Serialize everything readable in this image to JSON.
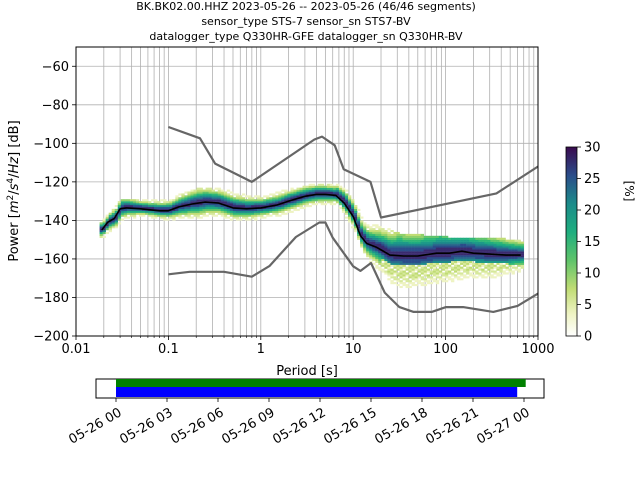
{
  "title_lines": [
    "BK.BK02.00.HHZ   2023-05-26 -- 2023-05-26  (46/46 segments)",
    "sensor_type STS-7 sensor_sn STS7-BV",
    "datalogger_type Q330HR-GFE datalogger_sn Q330HR-BV"
  ],
  "chart_data": {
    "type": "heatmap",
    "xlabel": "Period [s]",
    "ylabel": "Power [m²/s⁴/Hz] [dB]",
    "xscale": "log",
    "xlim": [
      0.01,
      1000
    ],
    "ylim": [
      -200,
      -50
    ],
    "xticks": [
      {
        "value": 0.01,
        "label": "0.01"
      },
      {
        "value": 0.1,
        "label": "0.1"
      },
      {
        "value": 1,
        "label": "1"
      },
      {
        "value": 10,
        "label": "10"
      },
      {
        "value": 100,
        "label": "100"
      },
      {
        "value": 1000,
        "label": "1000"
      }
    ],
    "yticks": [
      -60,
      -80,
      -100,
      -120,
      -140,
      -160,
      -180,
      -200
    ],
    "grid": true,
    "series": [
      {
        "role": "high-noise-model",
        "color": "#666666",
        "points": [
          [
            0.1,
            -91.5
          ],
          [
            0.22,
            -97.4
          ],
          [
            0.32,
            -110.5
          ],
          [
            0.8,
            -120
          ],
          [
            3.8,
            -98
          ],
          [
            4.6,
            -96.5
          ],
          [
            6.3,
            -101
          ],
          [
            7.9,
            -113.5
          ],
          [
            15.4,
            -120
          ],
          [
            20,
            -138.5
          ],
          [
            354.8,
            -126
          ],
          [
            1000,
            -112
          ]
        ]
      },
      {
        "role": "low-noise-model",
        "color": "#666666",
        "points": [
          [
            0.1,
            -168
          ],
          [
            0.17,
            -166.7
          ],
          [
            0.4,
            -166.7
          ],
          [
            0.8,
            -169.2
          ],
          [
            1.24,
            -163.7
          ],
          [
            2.4,
            -148.6
          ],
          [
            4.3,
            -141.1
          ],
          [
            5,
            -141.1
          ],
          [
            6,
            -149
          ],
          [
            10,
            -163.8
          ],
          [
            12,
            -166.2
          ],
          [
            15.6,
            -162.1
          ],
          [
            21.9,
            -177.5
          ],
          [
            31.6,
            -185
          ],
          [
            45,
            -187.5
          ],
          [
            70.8,
            -187.5
          ],
          [
            101,
            -185
          ],
          [
            154.5,
            -185
          ],
          [
            328.4,
            -187.5
          ],
          [
            600,
            -184.4
          ],
          [
            1000,
            -178
          ]
        ]
      },
      {
        "role": "mode",
        "color": "#000000",
        "points": [
          [
            0.019,
            -145
          ],
          [
            0.022,
            -141
          ],
          [
            0.026,
            -139
          ],
          [
            0.03,
            -134
          ],
          [
            0.035,
            -133.5
          ],
          [
            0.05,
            -134
          ],
          [
            0.08,
            -135
          ],
          [
            0.1,
            -135
          ],
          [
            0.13,
            -133
          ],
          [
            0.18,
            -131.5
          ],
          [
            0.25,
            -130.5
          ],
          [
            0.35,
            -131
          ],
          [
            0.5,
            -133.5
          ],
          [
            0.7,
            -134
          ],
          [
            1,
            -133.5
          ],
          [
            1.5,
            -132
          ],
          [
            2,
            -130
          ],
          [
            3,
            -127.5
          ],
          [
            4,
            -126.5
          ],
          [
            5,
            -126.5
          ],
          [
            6.5,
            -127
          ],
          [
            8,
            -131
          ],
          [
            10,
            -138
          ],
          [
            12,
            -148
          ],
          [
            14,
            -152
          ],
          [
            18,
            -154
          ],
          [
            25,
            -158
          ],
          [
            35,
            -158.5
          ],
          [
            50,
            -158.5
          ],
          [
            80,
            -157
          ],
          [
            110,
            -157
          ],
          [
            150,
            -156
          ],
          [
            200,
            -157
          ],
          [
            300,
            -157.5
          ],
          [
            450,
            -158
          ],
          [
            650,
            -158
          ]
        ]
      }
    ],
    "heatmap_envelope": [
      {
        "period": 0.02,
        "low": -150,
        "high": -140
      },
      {
        "period": 0.03,
        "low": -144,
        "high": -130
      },
      {
        "period": 0.05,
        "low": -140,
        "high": -131
      },
      {
        "period": 0.1,
        "low": -141,
        "high": -130
      },
      {
        "period": 0.2,
        "low": -142,
        "high": -124
      },
      {
        "period": 0.3,
        "low": -140,
        "high": -124
      },
      {
        "period": 0.5,
        "low": -141,
        "high": -126
      },
      {
        "period": 1,
        "low": -140,
        "high": -128
      },
      {
        "period": 2,
        "low": -138,
        "high": -125
      },
      {
        "period": 4,
        "low": -134,
        "high": -122
      },
      {
        "period": 6,
        "low": -133,
        "high": -122
      },
      {
        "period": 8,
        "low": -140,
        "high": -125
      },
      {
        "period": 10,
        "low": -148,
        "high": -132
      },
      {
        "period": 15,
        "low": -162,
        "high": -142
      },
      {
        "period": 30,
        "low": -182,
        "high": -148
      },
      {
        "period": 100,
        "low": -182,
        "high": -150
      },
      {
        "period": 300,
        "low": -176,
        "high": -150
      },
      {
        "period": 650,
        "low": -170,
        "high": -152
      }
    ],
    "colorbar": {
      "label": "[%]",
      "min": 0,
      "max": 30,
      "ticks": [
        0,
        5,
        10,
        15,
        20,
        25,
        30
      ]
    }
  },
  "timeline": {
    "tick_labels": [
      "05-26 00",
      "05-26 03",
      "05-26 06",
      "05-26 09",
      "05-26 12",
      "05-26 15",
      "05-26 18",
      "05-26 21",
      "05-27 00"
    ],
    "green_bar": {
      "start_hours": 0,
      "end_hours": 24.1,
      "color": "#008000"
    },
    "blue_bar": {
      "start_hours": 0,
      "end_hours": 23.6,
      "color": "#0000ff"
    }
  }
}
